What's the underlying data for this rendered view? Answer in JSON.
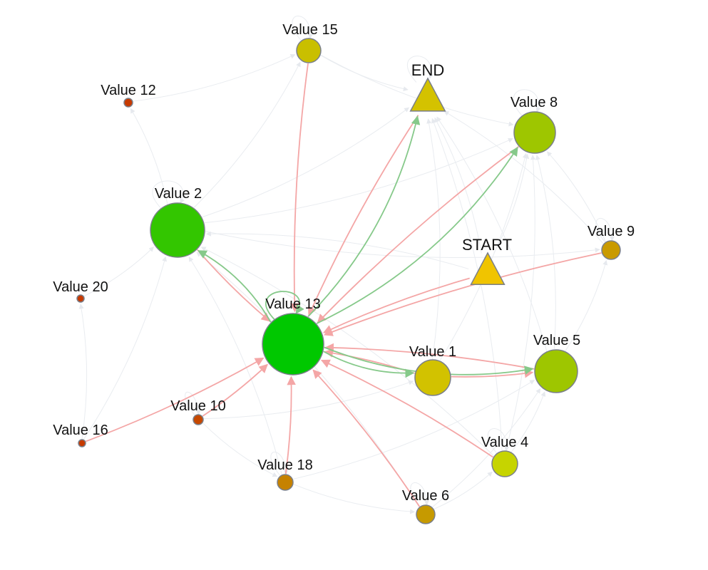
{
  "nodes": [
    {
      "id": "v15",
      "label": "Value 15",
      "shape": "circle",
      "color": "#c9bf00"
    },
    {
      "id": "v12",
      "label": "Value 12",
      "shape": "circle",
      "color": "#c63a00"
    },
    {
      "id": "end",
      "label": "END",
      "shape": "triangle",
      "color": "#d4c200"
    },
    {
      "id": "v8",
      "label": "Value 8",
      "shape": "circle",
      "color": "#9ec600"
    },
    {
      "id": "v2",
      "label": "Value 2",
      "shape": "circle",
      "color": "#33c600"
    },
    {
      "id": "v9",
      "label": "Value 9",
      "shape": "circle",
      "color": "#c99a00"
    },
    {
      "id": "start",
      "label": "START",
      "shape": "triangle",
      "color": "#f0c400"
    },
    {
      "id": "v20",
      "label": "Value 20",
      "shape": "circle",
      "color": "#c63a00"
    },
    {
      "id": "v13",
      "label": "Value 13",
      "shape": "circle",
      "color": "#00c800"
    },
    {
      "id": "v1",
      "label": "Value 1",
      "shape": "circle",
      "color": "#d2c200"
    },
    {
      "id": "v5",
      "label": "Value 5",
      "shape": "circle",
      "color": "#9ec600"
    },
    {
      "id": "v10",
      "label": "Value 10",
      "shape": "circle",
      "color": "#c64800"
    },
    {
      "id": "v16",
      "label": "Value 16",
      "shape": "circle",
      "color": "#c63a00"
    },
    {
      "id": "v4",
      "label": "Value 4",
      "shape": "circle",
      "color": "#c6d400"
    },
    {
      "id": "v18",
      "label": "Value 18",
      "shape": "circle",
      "color": "#c68200"
    },
    {
      "id": "v6",
      "label": "Value 6",
      "shape": "circle",
      "color": "#c69a00"
    }
  ],
  "edge_colors": {
    "incoming": "#f4a6a6",
    "outgoing": "#86c98a",
    "faint": "#eef0f3"
  },
  "edges": [
    {
      "from": "v15",
      "to": "v13",
      "kind": "incoming"
    },
    {
      "from": "v2",
      "to": "v13",
      "kind": "incoming"
    },
    {
      "from": "end",
      "to": "v13",
      "kind": "incoming"
    },
    {
      "from": "v8",
      "to": "v13",
      "kind": "incoming"
    },
    {
      "from": "v9",
      "to": "v13",
      "kind": "incoming"
    },
    {
      "from": "start",
      "to": "v13",
      "kind": "incoming"
    },
    {
      "from": "v1",
      "to": "v13",
      "kind": "incoming"
    },
    {
      "from": "v5",
      "to": "v13",
      "kind": "incoming"
    },
    {
      "from": "v4",
      "to": "v13",
      "kind": "incoming"
    },
    {
      "from": "v6",
      "to": "v13",
      "kind": "incoming"
    },
    {
      "from": "v18",
      "to": "v13",
      "kind": "incoming"
    },
    {
      "from": "v10",
      "to": "v13",
      "kind": "incoming"
    },
    {
      "from": "v16",
      "to": "v13",
      "kind": "incoming"
    },
    {
      "from": "v1",
      "to": "v5",
      "kind": "incoming"
    },
    {
      "from": "v13",
      "to": "end",
      "kind": "outgoing"
    },
    {
      "from": "v13",
      "to": "v8",
      "kind": "outgoing"
    },
    {
      "from": "v13",
      "to": "v2",
      "kind": "outgoing"
    },
    {
      "from": "v13",
      "to": "v1",
      "kind": "outgoing"
    },
    {
      "from": "v13",
      "to": "v5",
      "kind": "outgoing"
    },
    {
      "from": "v13",
      "to": "v13",
      "kind": "outgoing"
    },
    {
      "from": "v12",
      "to": "v15",
      "kind": "faint"
    },
    {
      "from": "v15",
      "to": "end",
      "kind": "faint"
    },
    {
      "from": "v15",
      "to": "v8",
      "kind": "faint"
    },
    {
      "from": "v2",
      "to": "v12",
      "kind": "faint"
    },
    {
      "from": "v2",
      "to": "v15",
      "kind": "faint"
    },
    {
      "from": "v2",
      "to": "end",
      "kind": "faint"
    },
    {
      "from": "v2",
      "to": "v8",
      "kind": "faint"
    },
    {
      "from": "v2",
      "to": "v9",
      "kind": "faint"
    },
    {
      "from": "v20",
      "to": "v2",
      "kind": "faint"
    },
    {
      "from": "v16",
      "to": "v2",
      "kind": "faint"
    },
    {
      "from": "start",
      "to": "end",
      "kind": "faint"
    },
    {
      "from": "start",
      "to": "v8",
      "kind": "faint"
    },
    {
      "from": "start",
      "to": "v2",
      "kind": "faint"
    },
    {
      "from": "v9",
      "to": "v8",
      "kind": "faint"
    },
    {
      "from": "v9",
      "to": "end",
      "kind": "faint"
    },
    {
      "from": "v5",
      "to": "v8",
      "kind": "faint"
    },
    {
      "from": "v5",
      "to": "end",
      "kind": "faint"
    },
    {
      "from": "v5",
      "to": "v9",
      "kind": "faint"
    },
    {
      "from": "v1",
      "to": "end",
      "kind": "faint"
    },
    {
      "from": "v1",
      "to": "v8",
      "kind": "faint"
    },
    {
      "from": "v4",
      "to": "v5",
      "kind": "faint"
    },
    {
      "from": "v4",
      "to": "v8",
      "kind": "faint"
    },
    {
      "from": "v4",
      "to": "end",
      "kind": "faint"
    },
    {
      "from": "v6",
      "to": "v4",
      "kind": "faint"
    },
    {
      "from": "v6",
      "to": "v5",
      "kind": "faint"
    },
    {
      "from": "v18",
      "to": "v6",
      "kind": "faint"
    },
    {
      "from": "v18",
      "to": "v2",
      "kind": "faint"
    },
    {
      "from": "v10",
      "to": "v18",
      "kind": "faint"
    },
    {
      "from": "v10",
      "to": "v1",
      "kind": "faint"
    },
    {
      "from": "v16",
      "to": "v20",
      "kind": "faint"
    },
    {
      "from": "v6",
      "to": "v2",
      "kind": "faint"
    },
    {
      "from": "v18",
      "to": "v5",
      "kind": "faint"
    },
    {
      "from": "v4",
      "to": "v2",
      "kind": "faint"
    },
    {
      "from": "v15",
      "to": "v15",
      "kind": "faint"
    },
    {
      "from": "v2",
      "to": "v2",
      "kind": "faint"
    },
    {
      "from": "end",
      "to": "end",
      "kind": "faint"
    },
    {
      "from": "v8",
      "to": "v8",
      "kind": "faint"
    },
    {
      "from": "v9",
      "to": "v9",
      "kind": "faint"
    },
    {
      "from": "v6",
      "to": "v6",
      "kind": "faint"
    },
    {
      "from": "v18",
      "to": "v18",
      "kind": "faint"
    },
    {
      "from": "v10",
      "to": "v10",
      "kind": "faint"
    },
    {
      "from": "v4",
      "to": "v4",
      "kind": "faint"
    }
  ]
}
